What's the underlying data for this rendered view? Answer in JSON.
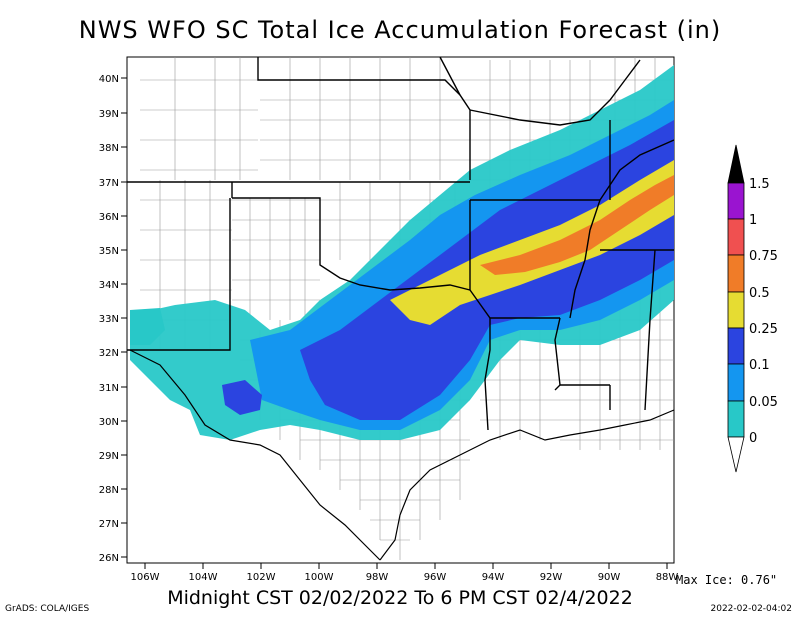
{
  "title": "NWS WFO SC Total Ice Accumulation Forecast (in)",
  "subtitle": "Midnight CST 02/02/2022 To 6 PM CST 02/4/2022",
  "max_ice": "Max Ice: 0.76\"",
  "credit": "GrADS: COLA/IGES",
  "timestamp": "2022-02-02-04:02",
  "lat_labels": [
    "40N",
    "39N",
    "38N",
    "37N",
    "36N",
    "35N",
    "34N",
    "33N",
    "32N",
    "31N",
    "30N",
    "29N",
    "28N",
    "27N",
    "26N"
  ],
  "lon_labels": [
    "106W",
    "104W",
    "102W",
    "100W",
    "98W",
    "96W",
    "94W",
    "92W",
    "90W",
    "88W"
  ],
  "legend": {
    "labels": [
      "1.5",
      "1",
      "0.75",
      "0.5",
      "0.25",
      "0.1",
      "0.05",
      "0"
    ],
    "colors": [
      "#000000",
      "#9a14d0",
      "#f05050",
      "#f07c28",
      "#e6dc32",
      "#2b44e0",
      "#1496f0",
      "#28c8c8"
    ]
  }
}
